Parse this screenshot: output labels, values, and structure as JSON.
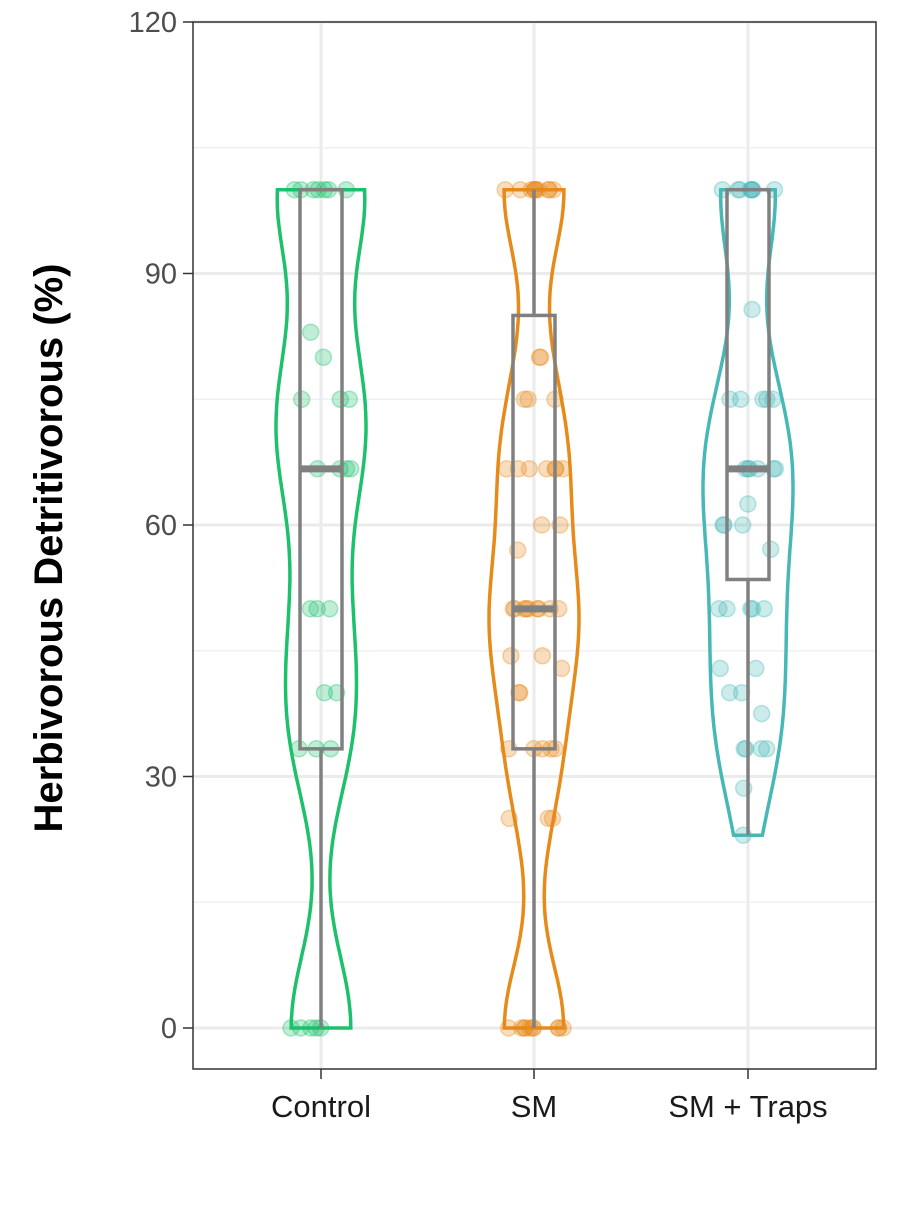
{
  "chart_data": {
    "type": "violin",
    "title": "",
    "xlabel": "",
    "ylabel": "Herbivorous Detritivorous (%)",
    "ylim": [
      -5,
      120
    ],
    "yticks": [
      0,
      30,
      60,
      90,
      120
    ],
    "grid": true,
    "legend": "none",
    "categories": [
      "Control",
      "SM",
      "SM + Traps"
    ],
    "series": [
      {
        "color": "#1dc06b",
        "box": {
          "min": 0,
          "q1": 33.3,
          "median": 66.7,
          "q3": 100,
          "max": 100
        },
        "violin_range": [
          0,
          100
        ],
        "points": [
          100,
          100,
          100,
          100,
          100,
          100,
          100,
          83,
          80,
          75,
          75,
          75,
          66.7,
          66.7,
          66.7,
          66.7,
          50,
          50,
          50,
          40,
          40,
          33.3,
          33.3,
          33.3,
          0,
          0,
          0,
          0,
          0
        ]
      },
      {
        "color": "#e68a1a",
        "box": {
          "min": 0,
          "q1": 33.3,
          "median": 50,
          "q3": 85,
          "max": 100
        },
        "violin_range": [
          0,
          100
        ],
        "points": [
          100,
          100,
          100,
          100,
          100,
          100,
          100,
          100,
          100,
          100,
          80,
          80,
          75,
          75,
          75,
          66.7,
          66.7,
          66.7,
          66.7,
          66.7,
          66.7,
          66.7,
          60,
          60,
          57,
          50,
          50,
          50,
          50,
          50,
          50,
          50,
          50,
          50,
          44.4,
          44.4,
          42.9,
          40,
          40,
          33.3,
          33.3,
          33.3,
          33.3,
          33.3,
          25,
          25,
          25,
          0,
          0,
          0,
          0,
          0,
          0,
          0,
          0,
          0,
          0
        ]
      },
      {
        "color": "#48b8b6",
        "box": {
          "min": 23,
          "q1": 53.5,
          "median": 66.7,
          "q3": 100,
          "max": 100
        },
        "violin_range": [
          23,
          100
        ],
        "points": [
          100,
          100,
          100,
          100,
          100,
          100,
          100,
          100,
          85.7,
          75,
          75,
          75,
          75,
          75,
          66.7,
          66.7,
          66.7,
          66.7,
          66.7,
          66.7,
          62.5,
          60,
          60,
          60,
          57.1,
          50,
          50,
          50,
          50,
          50,
          42.9,
          42.9,
          40,
          40,
          37.5,
          33.3,
          33.3,
          33.3,
          33.3,
          28.6,
          23
        ]
      }
    ]
  }
}
